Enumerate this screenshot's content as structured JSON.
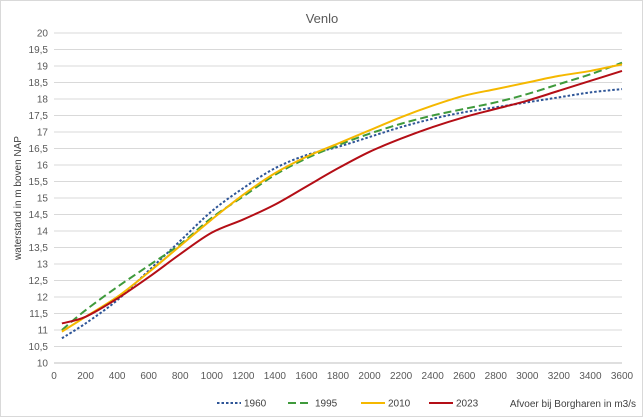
{
  "chart_data": {
    "type": "line",
    "title": "Venlo",
    "xlabel": "Afvoer bij Borgharen in m3/s",
    "ylabel": "waterstand in m boven NAP",
    "xlim": [
      0,
      3600
    ],
    "ylim": [
      10,
      20
    ],
    "x_ticks": [
      0,
      200,
      400,
      600,
      800,
      1000,
      1200,
      1400,
      1600,
      1800,
      2000,
      2200,
      2400,
      2600,
      2800,
      3000,
      3200,
      3400,
      3600
    ],
    "y_ticks": [
      "10",
      "10,5",
      "11",
      "11,5",
      "12",
      "12,5",
      "13",
      "13,5",
      "14",
      "14,5",
      "15",
      "15,5",
      "16",
      "16,5",
      "17",
      "17,5",
      "18",
      "18,5",
      "19",
      "19,5",
      "20"
    ],
    "grid": true,
    "legend_position": "bottom-center",
    "series": [
      {
        "name": "1960",
        "color": "#2e5597",
        "dash": "dotted",
        "points": [
          [
            50,
            10.75
          ],
          [
            200,
            11.2
          ],
          [
            400,
            11.9
          ],
          [
            600,
            12.8
          ],
          [
            800,
            13.7
          ],
          [
            1000,
            14.6
          ],
          [
            1200,
            15.3
          ],
          [
            1400,
            15.9
          ],
          [
            1600,
            16.3
          ],
          [
            1800,
            16.55
          ],
          [
            2000,
            16.85
          ],
          [
            2200,
            17.15
          ],
          [
            2400,
            17.4
          ],
          [
            2600,
            17.6
          ],
          [
            2800,
            17.75
          ],
          [
            3000,
            17.9
          ],
          [
            3200,
            18.05
          ],
          [
            3400,
            18.2
          ],
          [
            3600,
            18.3
          ]
        ]
      },
      {
        "name": "1995",
        "color": "#3f9a3c",
        "dash": "dashed",
        "points": [
          [
            50,
            11.0
          ],
          [
            200,
            11.6
          ],
          [
            400,
            12.3
          ],
          [
            600,
            12.95
          ],
          [
            800,
            13.6
          ],
          [
            1000,
            14.4
          ],
          [
            1200,
            15.05
          ],
          [
            1400,
            15.7
          ],
          [
            1600,
            16.2
          ],
          [
            1800,
            16.6
          ],
          [
            2000,
            16.95
          ],
          [
            2200,
            17.25
          ],
          [
            2400,
            17.5
          ],
          [
            2600,
            17.7
          ],
          [
            2800,
            17.9
          ],
          [
            3000,
            18.15
          ],
          [
            3200,
            18.45
          ],
          [
            3400,
            18.75
          ],
          [
            3600,
            19.1
          ]
        ]
      },
      {
        "name": "2010",
        "color": "#f5b800",
        "dash": "solid",
        "points": [
          [
            50,
            10.95
          ],
          [
            200,
            11.4
          ],
          [
            400,
            12.0
          ],
          [
            600,
            12.75
          ],
          [
            800,
            13.55
          ],
          [
            1000,
            14.35
          ],
          [
            1200,
            15.1
          ],
          [
            1400,
            15.75
          ],
          [
            1600,
            16.25
          ],
          [
            1800,
            16.65
          ],
          [
            2000,
            17.05
          ],
          [
            2200,
            17.45
          ],
          [
            2400,
            17.8
          ],
          [
            2600,
            18.1
          ],
          [
            2800,
            18.3
          ],
          [
            3000,
            18.5
          ],
          [
            3200,
            18.7
          ],
          [
            3400,
            18.85
          ],
          [
            3600,
            19.05
          ]
        ]
      },
      {
        "name": "2023",
        "color": "#b40e16",
        "dash": "solid",
        "points": [
          [
            50,
            11.2
          ],
          [
            200,
            11.4
          ],
          [
            400,
            11.95
          ],
          [
            600,
            12.6
          ],
          [
            800,
            13.3
          ],
          [
            1000,
            13.95
          ],
          [
            1200,
            14.35
          ],
          [
            1400,
            14.8
          ],
          [
            1600,
            15.35
          ],
          [
            1800,
            15.9
          ],
          [
            2000,
            16.4
          ],
          [
            2200,
            16.8
          ],
          [
            2400,
            17.15
          ],
          [
            2600,
            17.45
          ],
          [
            2800,
            17.7
          ],
          [
            3000,
            17.95
          ],
          [
            3200,
            18.25
          ],
          [
            3400,
            18.55
          ],
          [
            3600,
            18.85
          ]
        ]
      }
    ]
  }
}
